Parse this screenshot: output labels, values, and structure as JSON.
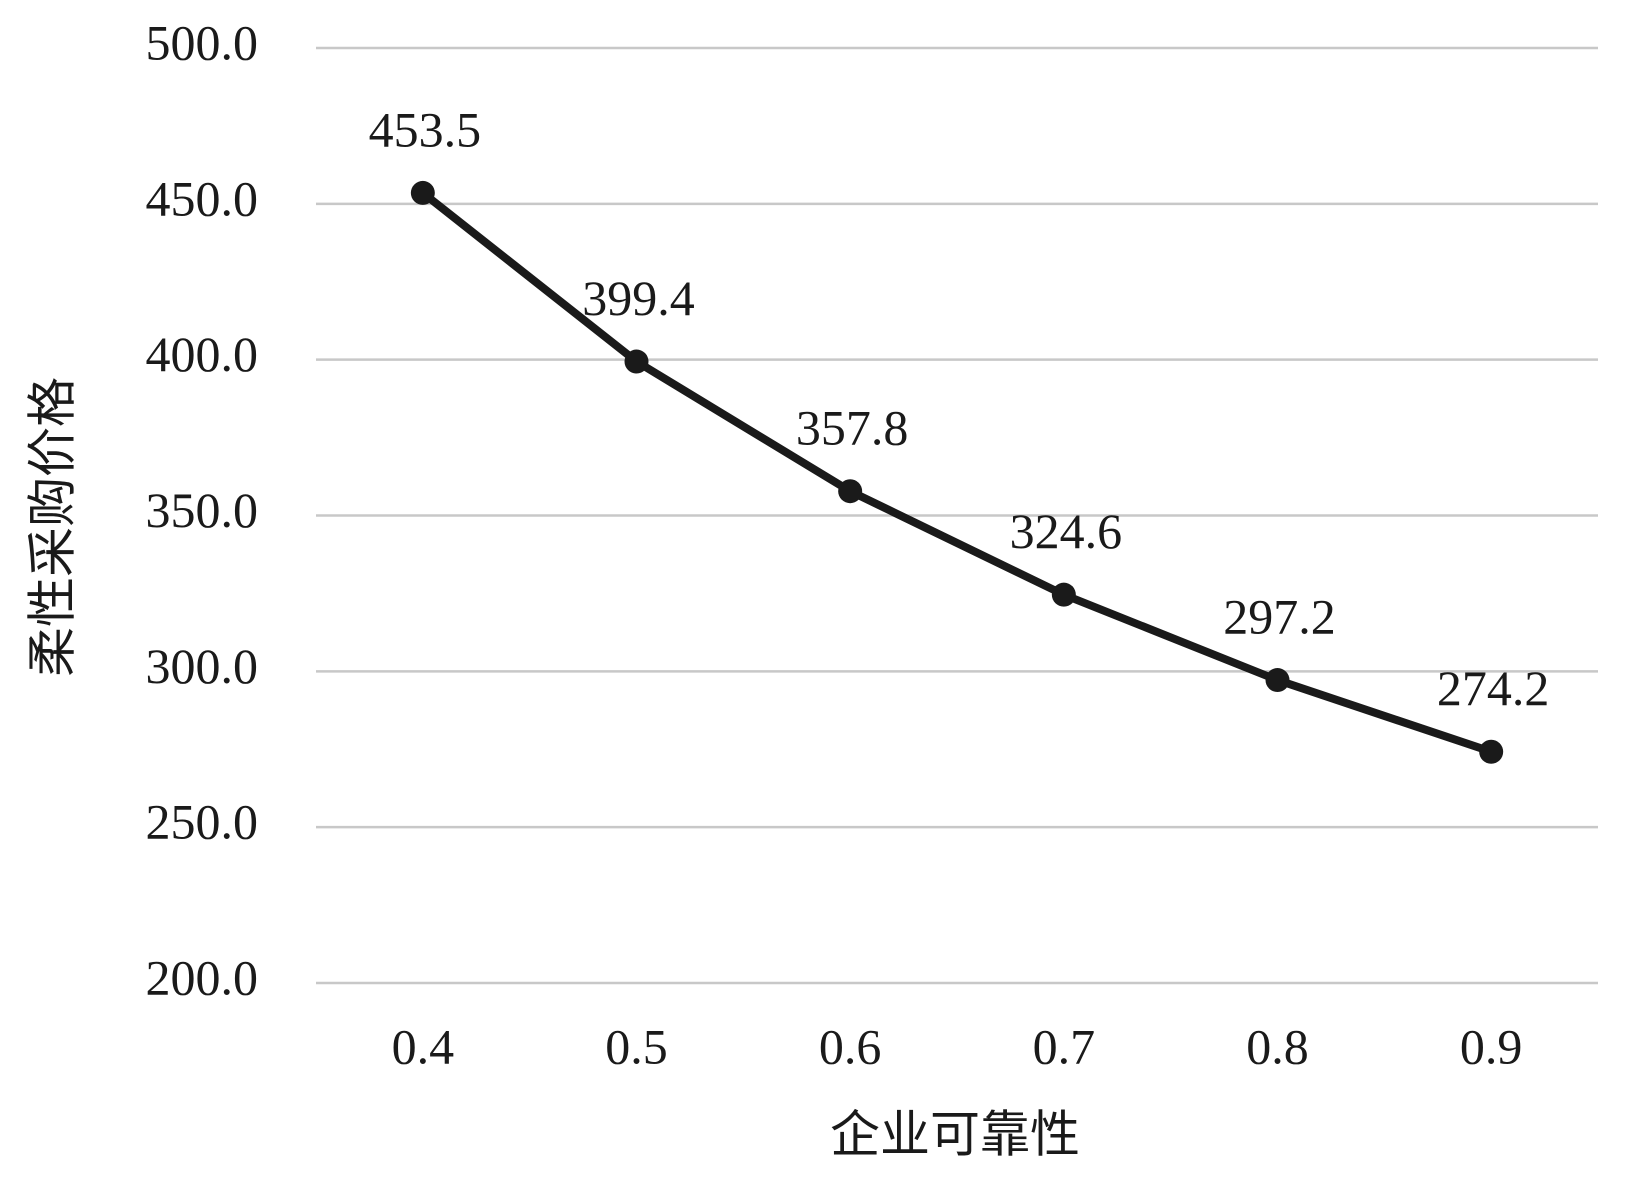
{
  "chart_data": {
    "type": "line",
    "x_label": "企业可靠性",
    "y_label": "柔性采购价格",
    "categories": [
      "0.4",
      "0.5",
      "0.6",
      "0.7",
      "0.8",
      "0.9"
    ],
    "values": [
      453.5,
      399.4,
      357.8,
      324.6,
      297.2,
      274.2
    ],
    "color": "#1a1a1a",
    "ylim": [
      200,
      500
    ],
    "yticks": [
      {
        "value": 200,
        "label": "200.0"
      },
      {
        "value": 250,
        "label": "250.0"
      },
      {
        "value": 300,
        "label": "300.0"
      },
      {
        "value": 350,
        "label": "350.0"
      },
      {
        "value": 400,
        "label": "400.0"
      },
      {
        "value": 450,
        "label": "450.0"
      },
      {
        "value": 500,
        "label": "500.0"
      }
    ],
    "grid": true
  }
}
